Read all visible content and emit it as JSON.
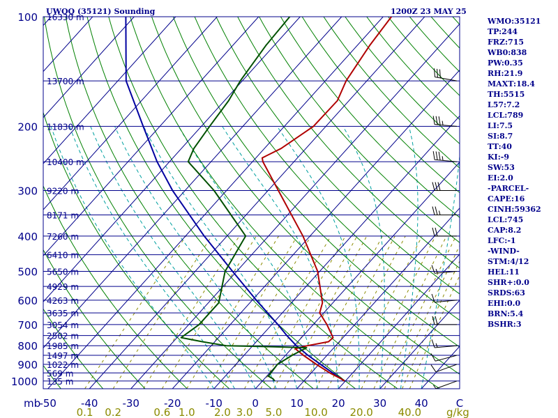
{
  "header": {
    "station": "UWQQ (35121) Sounding",
    "time": "1200Z 23 MAY 25"
  },
  "indices": [
    "WMO:35121",
    "TP:244",
    "FRZ:715",
    "WB0:838",
    "PW:0.35",
    "RH:21.9",
    "MAXT:18.4",
    "TH:5515",
    "L57:7.2",
    "LCL:789",
    "LI:7.5",
    "SI:8.7",
    "TT:40",
    "KI:-9",
    "SW:53",
    "EI:2.0",
    "-PARCEL-",
    "CAPE:16",
    "CINH:59362",
    "LCL:745",
    "CAP:8.2",
    "LFC:-1",
    "-WIND-",
    "STM:4/12",
    "HEL:11",
    "SHR+:0.0",
    "SRDS:63",
    "EHI:0.0",
    "BRN:5.4",
    "BSHR:3"
  ],
  "colors": {
    "isobar": "#00008b",
    "isotherm": "#00008b",
    "dry_adiabat": "#008000",
    "moist_adiabat": "#00a0a0",
    "mixing_ratio": "#8b8b00",
    "temperature": "#b00000",
    "dewpoint": "#005000",
    "parcel": "#0000a0"
  },
  "chart_data": {
    "type": "skew-t",
    "pressure_axis_label": "mb",
    "pressure_levels": [
      100,
      200,
      300,
      400,
      500,
      600,
      700,
      800,
      900,
      1000
    ],
    "height_labels": [
      {
        "p": 100,
        "label": "16330 m"
      },
      {
        "p": 150,
        "label": "13700 m"
      },
      {
        "p": 200,
        "label": "11830 m"
      },
      {
        "p": 250,
        "label": "10400 m"
      },
      {
        "p": 300,
        "label": "9220 m"
      },
      {
        "p": 350,
        "label": "8171 m"
      },
      {
        "p": 400,
        "label": "7260 m"
      },
      {
        "p": 450,
        "label": "6410 m"
      },
      {
        "p": 500,
        "label": "5650 m"
      },
      {
        "p": 550,
        "label": "4929 m"
      },
      {
        "p": 600,
        "label": "4263 m"
      },
      {
        "p": 650,
        "label": "3635 m"
      },
      {
        "p": 700,
        "label": "3054 m"
      },
      {
        "p": 750,
        "label": "2502 m"
      },
      {
        "p": 800,
        "label": "1985 m"
      },
      {
        "p": 850,
        "label": "1497 m"
      },
      {
        "p": 900,
        "label": "1022 m"
      },
      {
        "p": 950,
        "label": "569 m"
      },
      {
        "p": 1000,
        "label": "135 m"
      }
    ],
    "temperature_ticks": [
      -50,
      -40,
      -30,
      -20,
      -10,
      0,
      10,
      20,
      30,
      40
    ],
    "temperature_tick_labels": [
      "-50",
      "-40",
      "-30",
      "-20",
      "-10",
      "0",
      "10",
      "20",
      "30",
      "40"
    ],
    "mixing_ratio_ticks": [
      0.1,
      0.2,
      0.6,
      1.0,
      2.0,
      3.0,
      5.0,
      10.0,
      20.0,
      40.0
    ],
    "mixing_ratio_tick_labels": [
      "0.1",
      "0.2",
      "0.6",
      "1.0",
      "2.0",
      "3.0",
      "5.0",
      "10.0",
      "20.0",
      "40.0"
    ],
    "mixing_ratio_unit": "g/kg",
    "corner_label": "C",
    "temperature_profile": [
      [
        1000,
        19.8
      ],
      [
        985,
        18.4
      ],
      [
        950,
        14.5
      ],
      [
        900,
        9.4
      ],
      [
        850,
        4.3
      ],
      [
        815,
        0.9
      ],
      [
        800,
        3.2
      ],
      [
        780,
        7.4
      ],
      [
        760,
        7.6
      ],
      [
        700,
        3.3
      ],
      [
        650,
        -1.0
      ],
      [
        610,
        -2.5
      ],
      [
        500,
        -10.5
      ],
      [
        400,
        -21.7
      ],
      [
        300,
        -37.5
      ],
      [
        250,
        -47.5
      ],
      [
        244,
        -48.5
      ],
      [
        230,
        -46.0
      ],
      [
        200,
        -43.0
      ],
      [
        170,
        -42.8
      ],
      [
        150,
        -45.0
      ],
      [
        120,
        -47.0
      ],
      [
        100,
        -48.0
      ]
    ],
    "dewpoint_profile": [
      [
        1000,
        3.0
      ],
      [
        985,
        2.0
      ],
      [
        970,
        0.4
      ],
      [
        900,
        0.0
      ],
      [
        850,
        1.6
      ],
      [
        810,
        3.4
      ],
      [
        805,
        -5.0
      ],
      [
        800,
        -16.4
      ],
      [
        780,
        -23.0
      ],
      [
        760,
        -29.0
      ],
      [
        700,
        -27.5
      ],
      [
        610,
        -27.5
      ],
      [
        500,
        -32.8
      ],
      [
        400,
        -35.5
      ],
      [
        300,
        -53.0
      ],
      [
        250,
        -65.5
      ],
      [
        230,
        -67.0
      ],
      [
        200,
        -68.0
      ],
      [
        170,
        -69.0
      ],
      [
        150,
        -70.5
      ],
      [
        120,
        -72.0
      ],
      [
        100,
        -72.5
      ]
    ],
    "parcel_profile": [
      [
        1000,
        19.8
      ],
      [
        950,
        15.2
      ],
      [
        900,
        10.4
      ],
      [
        850,
        5.4
      ],
      [
        800,
        0.5
      ],
      [
        750,
        -4.0
      ],
      [
        700,
        -8.5
      ],
      [
        600,
        -19.0
      ],
      [
        500,
        -31.0
      ],
      [
        400,
        -45.5
      ],
      [
        300,
        -63.0
      ],
      [
        250,
        -73.0
      ],
      [
        200,
        -84.0
      ],
      [
        150,
        -98.0
      ],
      [
        100,
        -112.0
      ]
    ],
    "wind_barbs": [
      {
        "p": 1000,
        "dir": 250,
        "spd": 5
      },
      {
        "p": 900,
        "dir": 250,
        "spd": 10
      },
      {
        "p": 850,
        "dir": 255,
        "spd": 10
      },
      {
        "p": 800,
        "dir": 265,
        "spd": 15
      },
      {
        "p": 700,
        "dir": 270,
        "spd": 20
      },
      {
        "p": 600,
        "dir": 265,
        "spd": 10
      },
      {
        "p": 500,
        "dir": 265,
        "spd": 15
      },
      {
        "p": 400,
        "dir": 270,
        "spd": 20
      },
      {
        "p": 350,
        "dir": 270,
        "spd": 25
      },
      {
        "p": 300,
        "dir": 270,
        "spd": 30
      },
      {
        "p": 250,
        "dir": 275,
        "spd": 35
      },
      {
        "p": 200,
        "dir": 275,
        "spd": 35
      },
      {
        "p": 150,
        "dir": 280,
        "spd": 30
      }
    ]
  }
}
